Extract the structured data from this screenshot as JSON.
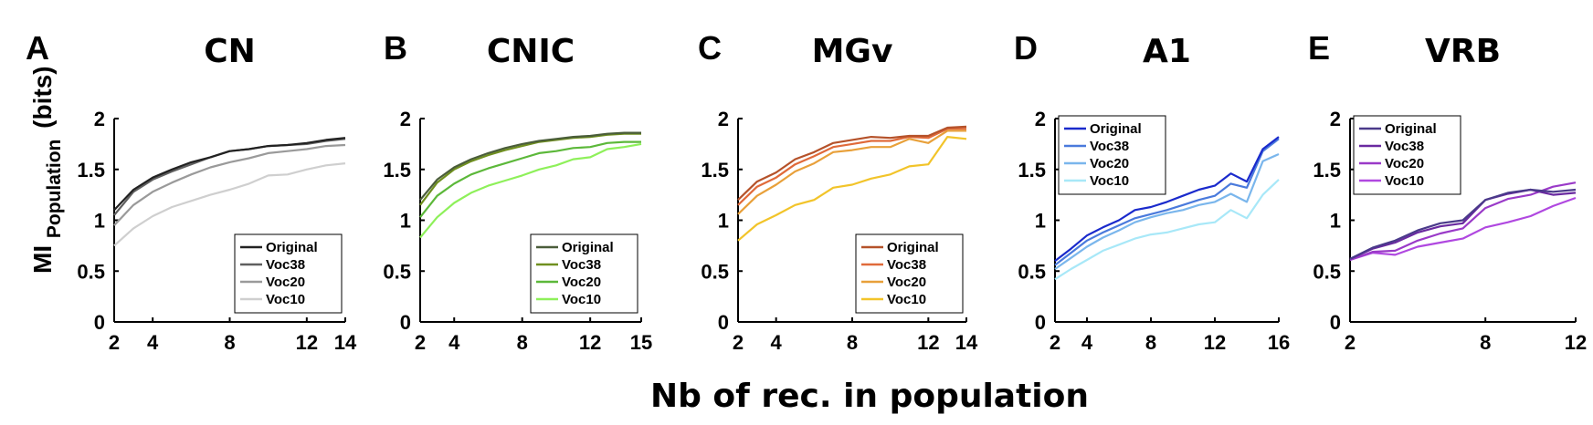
{
  "xlabel": "Nb of rec. in population",
  "ylabel": "MI",
  "ylabel_sub": "Population",
  "ylabel_unit": "(bits)",
  "chart_data": [
    {
      "type": "line",
      "letter": "A",
      "title": "CN",
      "xlim": [
        2,
        14
      ],
      "ylim": [
        0,
        2
      ],
      "xticks": [
        2,
        4,
        8,
        12,
        14
      ],
      "yticks": [
        0,
        0.5,
        1,
        1.5,
        2
      ],
      "legend_position": "bottom-right",
      "x": [
        2,
        3,
        4,
        5,
        6,
        7,
        8,
        9,
        10,
        11,
        12,
        13,
        14
      ],
      "series": [
        {
          "name": "Original",
          "color": "#222222",
          "values": [
            1.1,
            1.3,
            1.42,
            1.5,
            1.57,
            1.62,
            1.68,
            1.7,
            1.73,
            1.74,
            1.76,
            1.79,
            1.81
          ]
        },
        {
          "name": "Voc38",
          "color": "#5f5f5f",
          "values": [
            1.05,
            1.28,
            1.4,
            1.48,
            1.55,
            1.62,
            1.68,
            1.7,
            1.73,
            1.74,
            1.75,
            1.78,
            1.8
          ]
        },
        {
          "name": "Voc20",
          "color": "#9a9a9a",
          "values": [
            0.95,
            1.15,
            1.28,
            1.37,
            1.45,
            1.52,
            1.57,
            1.61,
            1.66,
            1.68,
            1.7,
            1.73,
            1.74
          ]
        },
        {
          "name": "Voc10",
          "color": "#cfcfcf",
          "values": [
            0.75,
            0.92,
            1.04,
            1.13,
            1.19,
            1.25,
            1.3,
            1.36,
            1.44,
            1.45,
            1.5,
            1.54,
            1.56
          ]
        }
      ]
    },
    {
      "type": "line",
      "letter": "B",
      "title": "CNIC",
      "xlim": [
        2,
        15
      ],
      "ylim": [
        0,
        2
      ],
      "xticks": [
        2,
        4,
        8,
        12,
        15
      ],
      "yticks": [
        0,
        0.5,
        1,
        1.5,
        2
      ],
      "legend_position": "bottom-right",
      "x": [
        2,
        3,
        4,
        5,
        6,
        7,
        8,
        9,
        10,
        11,
        12,
        13,
        14,
        15
      ],
      "series": [
        {
          "name": "Original",
          "color": "#4a5d3a",
          "values": [
            1.2,
            1.4,
            1.52,
            1.6,
            1.66,
            1.71,
            1.75,
            1.78,
            1.8,
            1.82,
            1.83,
            1.85,
            1.86,
            1.86
          ]
        },
        {
          "name": "Voc38",
          "color": "#6f8f1f",
          "values": [
            1.15,
            1.37,
            1.5,
            1.58,
            1.64,
            1.69,
            1.73,
            1.77,
            1.79,
            1.81,
            1.82,
            1.84,
            1.85,
            1.85
          ]
        },
        {
          "name": "Voc20",
          "color": "#5cb83a",
          "values": [
            1.03,
            1.24,
            1.36,
            1.45,
            1.51,
            1.56,
            1.61,
            1.66,
            1.68,
            1.71,
            1.72,
            1.76,
            1.77,
            1.77
          ]
        },
        {
          "name": "Voc10",
          "color": "#8ef05a",
          "values": [
            0.83,
            1.03,
            1.17,
            1.27,
            1.34,
            1.39,
            1.44,
            1.5,
            1.54,
            1.6,
            1.62,
            1.7,
            1.72,
            1.75
          ]
        }
      ]
    },
    {
      "type": "line",
      "letter": "C",
      "title": "MGv",
      "xlim": [
        2,
        14
      ],
      "ylim": [
        0,
        2
      ],
      "xticks": [
        2,
        4,
        8,
        12,
        14
      ],
      "yticks": [
        0,
        0.5,
        1,
        1.5,
        2
      ],
      "legend_position": "bottom-right",
      "x": [
        2,
        3,
        4,
        5,
        6,
        7,
        8,
        9,
        10,
        11,
        12,
        13,
        14
      ],
      "series": [
        {
          "name": "Original",
          "color": "#b5522a",
          "values": [
            1.2,
            1.38,
            1.47,
            1.6,
            1.67,
            1.76,
            1.79,
            1.82,
            1.81,
            1.83,
            1.83,
            1.91,
            1.92
          ]
        },
        {
          "name": "Voc38",
          "color": "#e06a3a",
          "values": [
            1.15,
            1.33,
            1.42,
            1.55,
            1.63,
            1.72,
            1.75,
            1.78,
            1.78,
            1.82,
            1.81,
            1.9,
            1.9
          ]
        },
        {
          "name": "Voc20",
          "color": "#e8a03a",
          "values": [
            1.06,
            1.24,
            1.35,
            1.48,
            1.56,
            1.67,
            1.69,
            1.72,
            1.72,
            1.8,
            1.76,
            1.88,
            1.88
          ]
        },
        {
          "name": "Voc10",
          "color": "#f2c42a",
          "values": [
            0.8,
            0.96,
            1.05,
            1.15,
            1.2,
            1.32,
            1.35,
            1.41,
            1.45,
            1.53,
            1.55,
            1.82,
            1.8
          ]
        }
      ]
    },
    {
      "type": "line",
      "letter": "D",
      "title": "A1",
      "xlim": [
        2,
        16
      ],
      "ylim": [
        0,
        2
      ],
      "xticks": [
        2,
        4,
        8,
        12,
        16
      ],
      "yticks": [
        0,
        0.5,
        1,
        1.5,
        2
      ],
      "legend_position": "top-left",
      "x": [
        2,
        3,
        4,
        5,
        6,
        7,
        8,
        9,
        10,
        11,
        12,
        13,
        14,
        15,
        16
      ],
      "series": [
        {
          "name": "Original",
          "color": "#1a2acc",
          "values": [
            0.6,
            0.72,
            0.85,
            0.93,
            1.0,
            1.1,
            1.13,
            1.18,
            1.24,
            1.3,
            1.34,
            1.46,
            1.38,
            1.7,
            1.82
          ]
        },
        {
          "name": "Voc38",
          "color": "#4a7adc",
          "values": [
            0.56,
            0.68,
            0.8,
            0.88,
            0.95,
            1.02,
            1.06,
            1.1,
            1.15,
            1.2,
            1.24,
            1.36,
            1.32,
            1.68,
            1.8
          ]
        },
        {
          "name": "Voc20",
          "color": "#7ab6ec",
          "values": [
            0.52,
            0.63,
            0.74,
            0.83,
            0.9,
            0.98,
            1.03,
            1.07,
            1.1,
            1.15,
            1.18,
            1.26,
            1.18,
            1.58,
            1.65
          ]
        },
        {
          "name": "Voc10",
          "color": "#a8e8f8",
          "values": [
            0.42,
            0.52,
            0.61,
            0.7,
            0.76,
            0.82,
            0.86,
            0.88,
            0.92,
            0.96,
            0.98,
            1.1,
            1.02,
            1.25,
            1.4
          ]
        }
      ]
    },
    {
      "type": "line",
      "letter": "E",
      "title": "VRB",
      "xlim": [
        2,
        12
      ],
      "ylim": [
        0,
        2
      ],
      "xticks": [
        2,
        8,
        12
      ],
      "yticks": [
        0,
        0.5,
        1,
        1.5,
        2
      ],
      "legend_position": "top-left",
      "x": [
        2,
        3,
        4,
        5,
        6,
        7,
        8,
        9,
        10,
        11,
        12
      ],
      "series": [
        {
          "name": "Original",
          "color": "#4a3a8a",
          "values": [
            0.62,
            0.73,
            0.8,
            0.9,
            0.97,
            1.0,
            1.2,
            1.27,
            1.3,
            1.28,
            1.3
          ]
        },
        {
          "name": "Voc38",
          "color": "#6a2aa0",
          "values": [
            0.62,
            0.72,
            0.78,
            0.88,
            0.94,
            0.97,
            1.2,
            1.26,
            1.3,
            1.25,
            1.27
          ]
        },
        {
          "name": "Voc20",
          "color": "#9a3ac8",
          "values": [
            0.61,
            0.69,
            0.7,
            0.8,
            0.87,
            0.92,
            1.12,
            1.21,
            1.25,
            1.33,
            1.37
          ]
        },
        {
          "name": "Voc10",
          "color": "#b048e0",
          "values": [
            0.61,
            0.68,
            0.66,
            0.74,
            0.78,
            0.82,
            0.93,
            0.98,
            1.04,
            1.14,
            1.22
          ]
        }
      ]
    }
  ]
}
